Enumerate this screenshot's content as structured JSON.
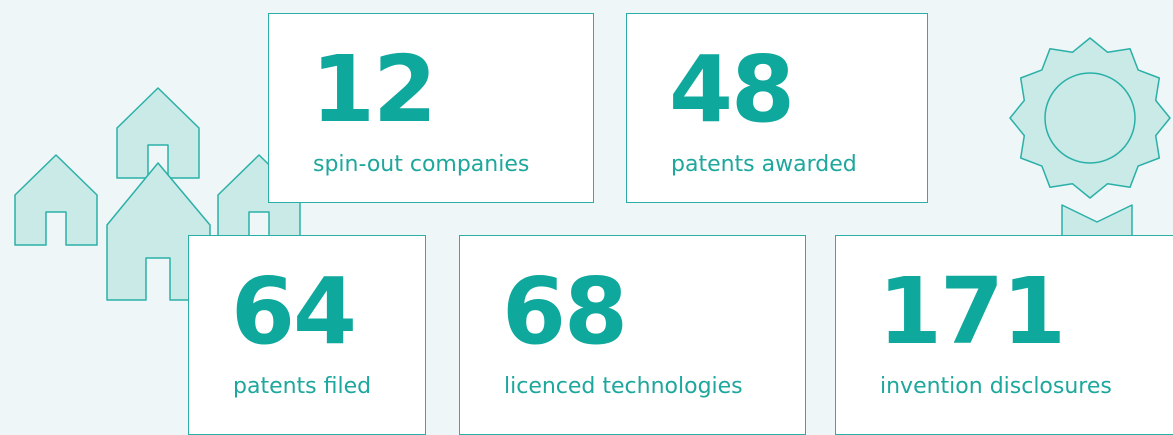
{
  "stats": [
    {
      "value": 12,
      "label": "spin-out companies"
    },
    {
      "value": 48,
      "label": "patents awarded"
    },
    {
      "value": 64,
      "label": "patents filed"
    },
    {
      "value": 68,
      "label": "licenced technologies"
    },
    {
      "value": 171,
      "label": "invention disclosures"
    }
  ]
}
